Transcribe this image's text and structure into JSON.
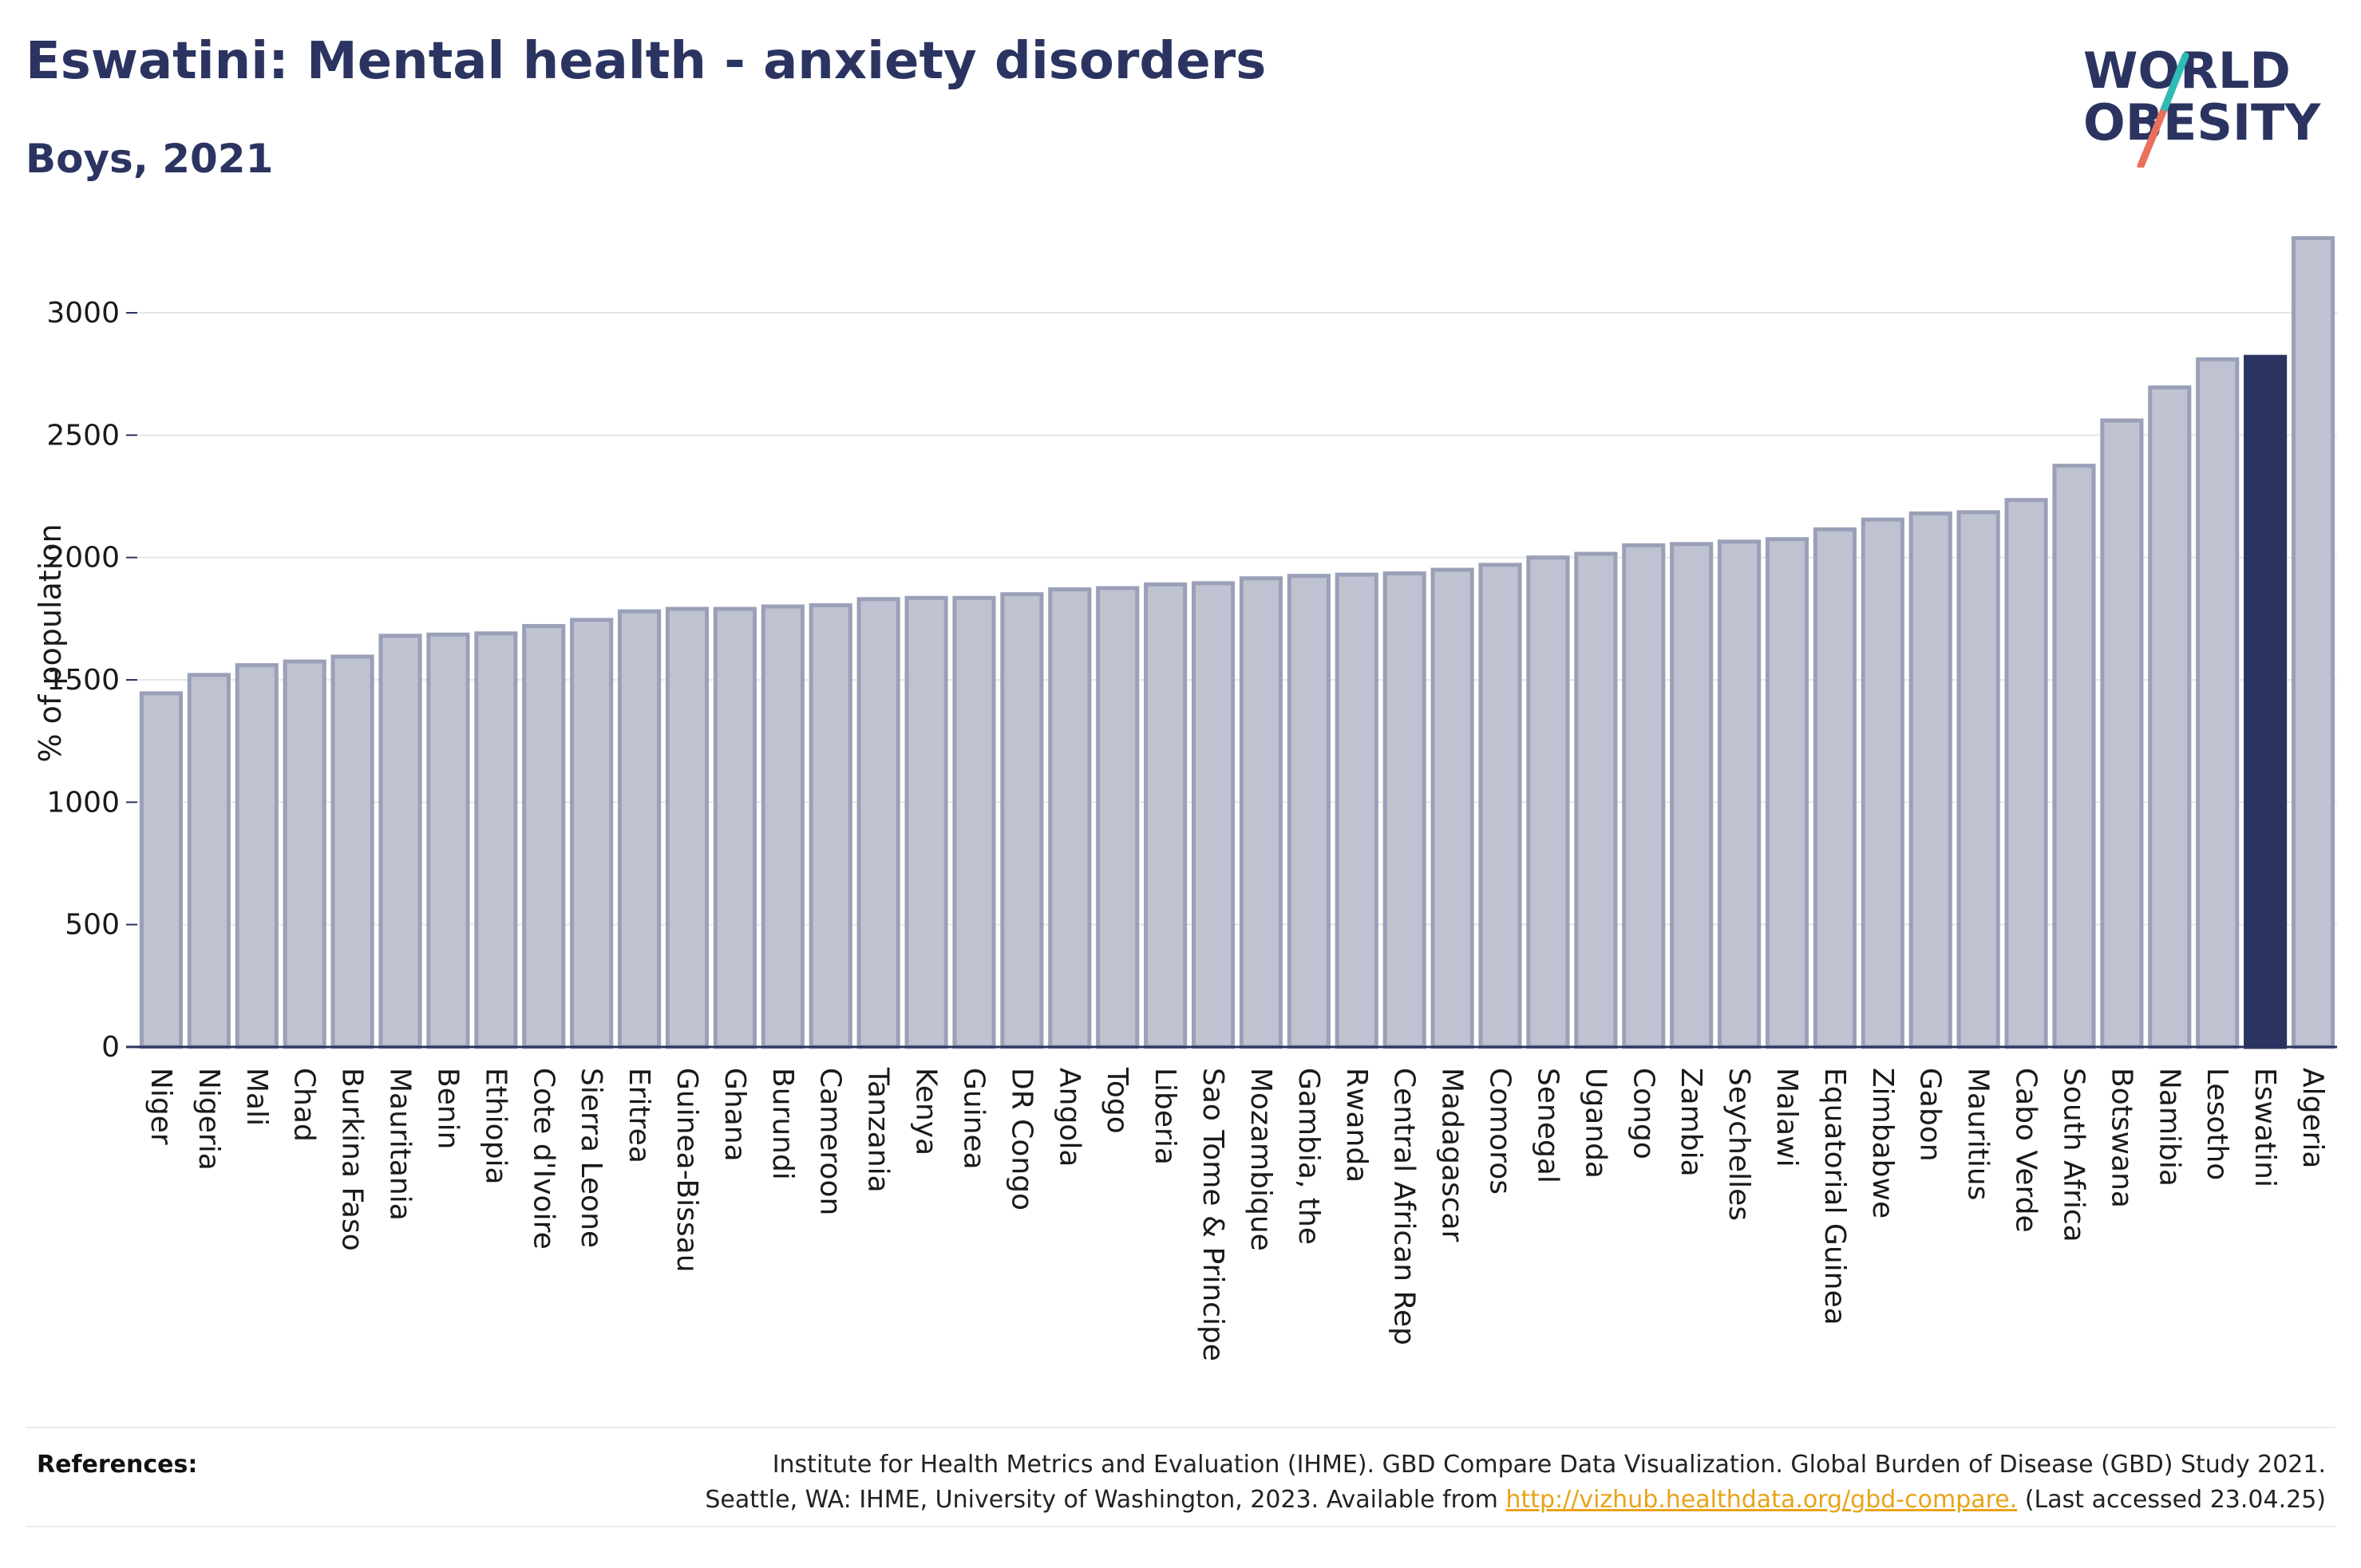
{
  "header": {
    "title": "Eswatini: Mental health - anxiety disorders",
    "subtitle": "Boys, 2021"
  },
  "logo": {
    "line1": "WORLD",
    "line2": "OBESITY",
    "accent_colors": [
      "#2fbcb5",
      "#e8705c"
    ]
  },
  "colors": {
    "bar_default": "#bfc3d1",
    "bar_border": "#9aa0b8",
    "bar_highlight": "#2b3461",
    "grid": "#e6e6e6",
    "axis": "#2b3461",
    "link": "#e8a317"
  },
  "chart_data": {
    "type": "bar",
    "title": "Eswatini: Mental health - anxiety disorders",
    "subtitle": "Boys, 2021",
    "ylabel": "% of population",
    "xlabel": "",
    "ylim": [
      0,
      3300
    ],
    "yticks": [
      0,
      500,
      1000,
      1500,
      2000,
      2500,
      3000
    ],
    "grid": true,
    "highlight": "Eswatini",
    "categories": [
      "Niger",
      "Nigeria",
      "Mali",
      "Chad",
      "Burkina Faso",
      "Mauritania",
      "Benin",
      "Ethiopia",
      "Cote d'Ivoire",
      "Sierra Leone",
      "Eritrea",
      "Guinea-Bissau",
      "Ghana",
      "Burundi",
      "Cameroon",
      "Tanzania",
      "Kenya",
      "Guinea",
      "DR Congo",
      "Angola",
      "Togo",
      "Liberia",
      "Sao Tome & Principe",
      "Mozambique",
      "Gambia, the",
      "Rwanda",
      "Central African Rep",
      "Madagascar",
      "Comoros",
      "Senegal",
      "Uganda",
      "Congo",
      "Zambia",
      "Seychelles",
      "Malawi",
      "Equatorial Guinea",
      "Zimbabwe",
      "Gabon",
      "Mauritius",
      "Cabo Verde",
      "South Africa",
      "Botswana",
      "Namibia",
      "Lesotho",
      "Eswatini",
      "Algeria"
    ],
    "values": [
      1445,
      1520,
      1560,
      1575,
      1595,
      1680,
      1685,
      1690,
      1720,
      1745,
      1780,
      1790,
      1790,
      1800,
      1805,
      1830,
      1835,
      1835,
      1850,
      1870,
      1875,
      1890,
      1895,
      1915,
      1925,
      1930,
      1935,
      1950,
      1970,
      2000,
      2015,
      2050,
      2055,
      2065,
      2075,
      2115,
      2155,
      2180,
      2185,
      2235,
      2375,
      2560,
      2695,
      2810,
      2820,
      3305
    ]
  },
  "references": {
    "label": "References:",
    "line1": "Institute for Health Metrics and Evaluation (IHME). GBD Compare Data Visualization. Global Burden of Disease (GBD) Study 2021.",
    "line2_prefix": "Seattle, WA: IHME, University of Washington, 2023. Available from ",
    "link_text": "http://vizhub.healthdata.org/gbd-compare.",
    "line2_suffix": " (Last accessed 23.04.25)"
  }
}
